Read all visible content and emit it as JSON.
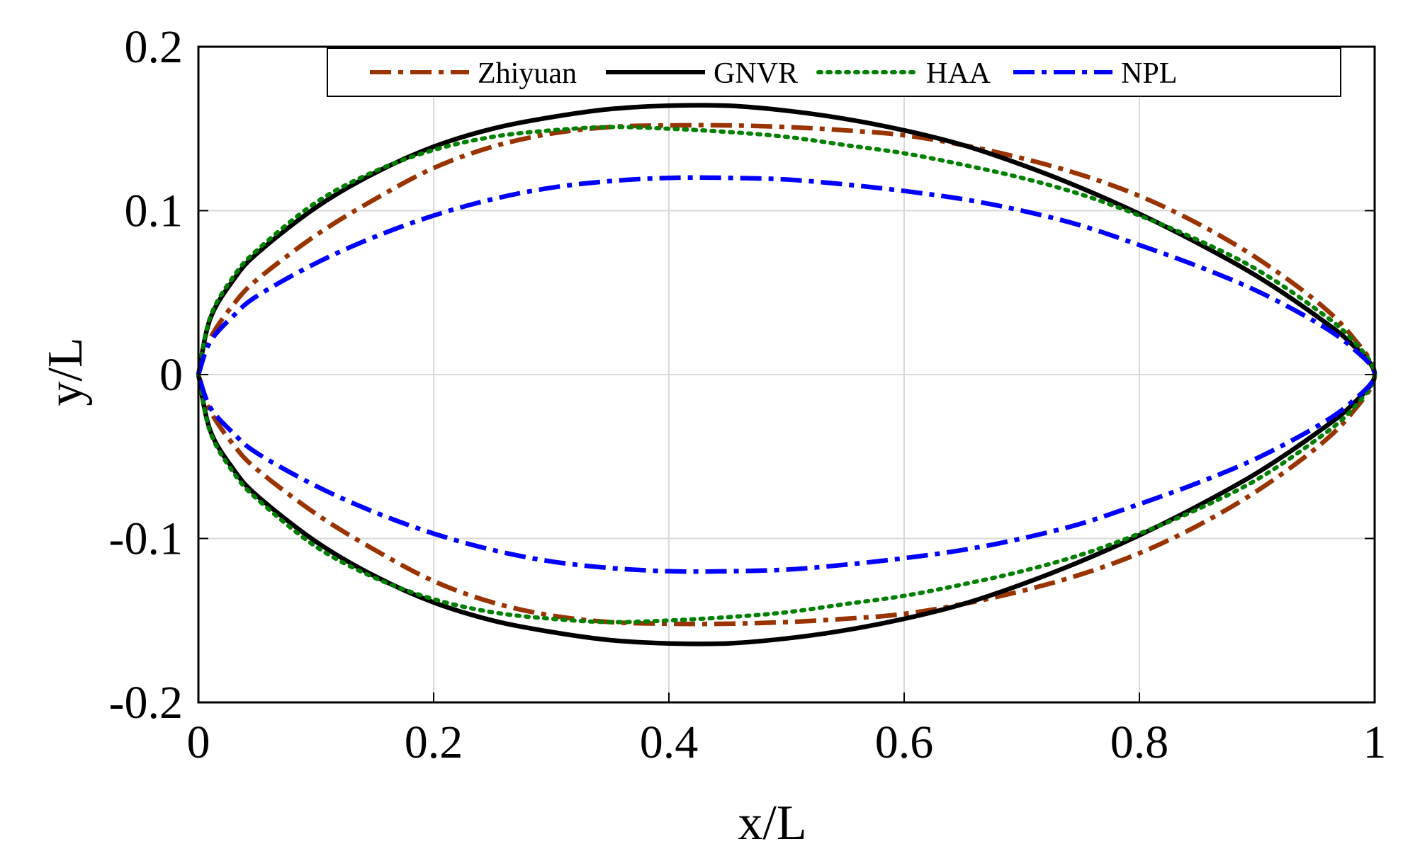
{
  "chart_data": {
    "type": "line",
    "title": "",
    "xlabel": "x/L",
    "ylabel": "y/L",
    "xlim": [
      0,
      1
    ],
    "ylim": [
      -0.2,
      0.2
    ],
    "xticks": [
      0,
      0.2,
      0.4,
      0.6,
      0.8,
      1
    ],
    "xtick_labels": [
      "0",
      "0.2",
      "0.4",
      "0.6",
      "0.8",
      "1"
    ],
    "yticks": [
      -0.2,
      -0.1,
      0,
      0.1,
      0.2
    ],
    "ytick_labels": [
      "-0.2",
      "-0.1",
      "0",
      "0.1",
      "0.2"
    ],
    "grid": true,
    "legend_position": "top",
    "series": [
      {
        "name": "Zhiyuan",
        "color": "#993300",
        "style": "dash-dot",
        "x": [
          0,
          0.01,
          0.03,
          0.05,
          0.1,
          0.15,
          0.2,
          0.25,
          0.3,
          0.35,
          0.4,
          0.45,
          0.5,
          0.55,
          0.6,
          0.65,
          0.7,
          0.75,
          0.8,
          0.85,
          0.9,
          0.95,
          0.98,
          1
        ],
        "upper": [
          0,
          0.022,
          0.043,
          0.058,
          0.085,
          0.107,
          0.126,
          0.139,
          0.147,
          0.151,
          0.152,
          0.152,
          0.151,
          0.149,
          0.146,
          0.14,
          0.132,
          0.122,
          0.109,
          0.092,
          0.071,
          0.045,
          0.024,
          0
        ],
        "lower": [
          0,
          -0.022,
          -0.043,
          -0.058,
          -0.085,
          -0.107,
          -0.126,
          -0.139,
          -0.147,
          -0.151,
          -0.152,
          -0.152,
          -0.151,
          -0.149,
          -0.146,
          -0.14,
          -0.132,
          -0.122,
          -0.109,
          -0.092,
          -0.071,
          -0.045,
          -0.024,
          0
        ]
      },
      {
        "name": "GNVR",
        "color": "#000000",
        "style": "solid",
        "x": [
          0,
          0.01,
          0.03,
          0.05,
          0.1,
          0.15,
          0.2,
          0.25,
          0.3,
          0.35,
          0.4,
          0.45,
          0.5,
          0.55,
          0.6,
          0.65,
          0.7,
          0.75,
          0.8,
          0.85,
          0.9,
          0.95,
          0.98,
          1
        ],
        "upper": [
          0,
          0.034,
          0.058,
          0.074,
          0.102,
          0.123,
          0.139,
          0.15,
          0.157,
          0.162,
          0.164,
          0.164,
          0.161,
          0.156,
          0.149,
          0.14,
          0.128,
          0.114,
          0.098,
          0.08,
          0.06,
          0.036,
          0.019,
          0
        ],
        "lower": [
          0,
          -0.034,
          -0.058,
          -0.074,
          -0.102,
          -0.123,
          -0.139,
          -0.15,
          -0.157,
          -0.162,
          -0.164,
          -0.164,
          -0.161,
          -0.156,
          -0.149,
          -0.14,
          -0.128,
          -0.114,
          -0.098,
          -0.08,
          -0.06,
          -0.036,
          -0.019,
          0
        ]
      },
      {
        "name": "HAA",
        "color": "#008000",
        "style": "dotted",
        "x": [
          0,
          0.01,
          0.03,
          0.05,
          0.1,
          0.15,
          0.2,
          0.25,
          0.3,
          0.35,
          0.4,
          0.45,
          0.5,
          0.55,
          0.6,
          0.65,
          0.7,
          0.75,
          0.8,
          0.85,
          0.9,
          0.95,
          0.98,
          1
        ],
        "upper": [
          0,
          0.035,
          0.06,
          0.076,
          0.105,
          0.124,
          0.137,
          0.145,
          0.149,
          0.151,
          0.15,
          0.148,
          0.145,
          0.14,
          0.135,
          0.128,
          0.12,
          0.11,
          0.097,
          0.082,
          0.064,
          0.04,
          0.022,
          0
        ],
        "lower": [
          0,
          -0.035,
          -0.06,
          -0.076,
          -0.105,
          -0.124,
          -0.137,
          -0.145,
          -0.149,
          -0.151,
          -0.15,
          -0.148,
          -0.145,
          -0.14,
          -0.135,
          -0.128,
          -0.12,
          -0.11,
          -0.097,
          -0.082,
          -0.064,
          -0.04,
          -0.022,
          0
        ]
      },
      {
        "name": "NPL",
        "color": "#0000ff",
        "style": "dash-dot",
        "x": [
          0,
          0.01,
          0.03,
          0.05,
          0.1,
          0.15,
          0.2,
          0.25,
          0.3,
          0.35,
          0.4,
          0.45,
          0.5,
          0.55,
          0.6,
          0.65,
          0.7,
          0.75,
          0.8,
          0.85,
          0.9,
          0.95,
          0.98,
          1
        ],
        "upper": [
          0,
          0.02,
          0.036,
          0.048,
          0.068,
          0.084,
          0.097,
          0.107,
          0.114,
          0.118,
          0.12,
          0.12,
          0.119,
          0.116,
          0.112,
          0.107,
          0.1,
          0.091,
          0.079,
          0.066,
          0.051,
          0.032,
          0.017,
          0
        ],
        "lower": [
          0,
          -0.02,
          -0.036,
          -0.048,
          -0.068,
          -0.084,
          -0.097,
          -0.107,
          -0.114,
          -0.118,
          -0.12,
          -0.12,
          -0.119,
          -0.116,
          -0.112,
          -0.107,
          -0.1,
          -0.091,
          -0.079,
          -0.066,
          -0.051,
          -0.032,
          -0.017,
          0
        ]
      }
    ]
  }
}
